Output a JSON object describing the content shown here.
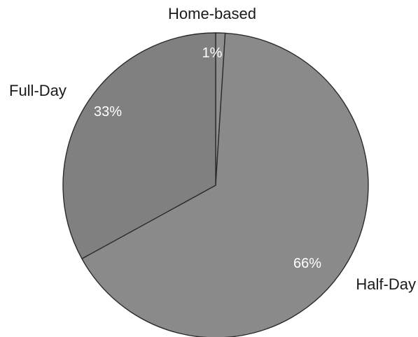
{
  "chart_data": {
    "type": "pie",
    "title": "",
    "categories": [
      "Home-based",
      "Half-Day",
      "Full-Day"
    ],
    "values": [
      1,
      66,
      33
    ],
    "value_labels": [
      "1%",
      "66%",
      "33%"
    ],
    "colors": {
      "Home-based": "#8f8f8f",
      "Half-Day": "#8a8a8a",
      "Full-Day": "#808080"
    },
    "legend": "none",
    "label_placement": "category name outside slice, percentage inside slice"
  }
}
